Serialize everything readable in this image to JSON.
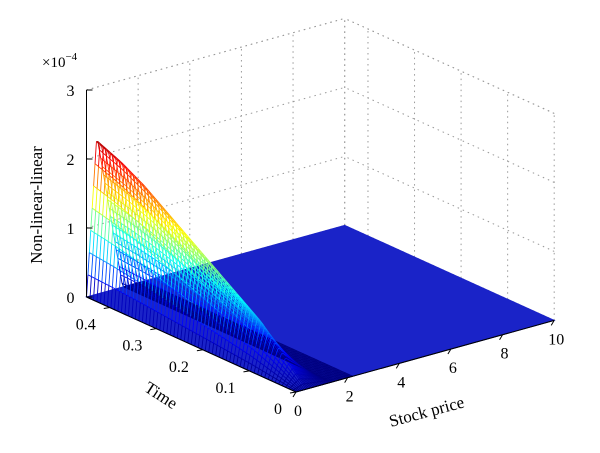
{
  "chart_data": {
    "type": "surface",
    "title": "",
    "xlabel": "Stock price",
    "ylabel": "Time",
    "zlabel": "Non-linear-linear",
    "z_multiplier_label": "×10",
    "z_multiplier_exponent": "−4",
    "xlim": [
      0,
      10
    ],
    "ylim": [
      0,
      0.45
    ],
    "zlim": [
      0,
      3
    ],
    "x_ticks": [
      "0",
      "2",
      "4",
      "6",
      "8",
      "10"
    ],
    "y_ticks": [
      "0",
      "0.1",
      "0.2",
      "0.3",
      "0.4"
    ],
    "z_ticks": [
      "0",
      "1",
      "2",
      "3"
    ],
    "grid": true,
    "colormap": "jet",
    "series": [
      {
        "description_free": true,
        "peak_z_at_time": [
          {
            "t": 0.05,
            "z": 0.35
          },
          {
            "t": 0.1,
            "z": 0.7
          },
          {
            "t": 0.15,
            "z": 0.95
          },
          {
            "t": 0.2,
            "z": 1.2
          },
          {
            "t": 0.25,
            "z": 1.45
          },
          {
            "t": 0.3,
            "z": 1.7
          },
          {
            "t": 0.35,
            "z": 1.95
          },
          {
            "t": 0.4,
            "z": 2.15
          },
          {
            "t": 0.45,
            "z": 2.3
          }
        ],
        "peak_stock_price": 0.4,
        "decay_stock_price": 1.4
      }
    ]
  }
}
